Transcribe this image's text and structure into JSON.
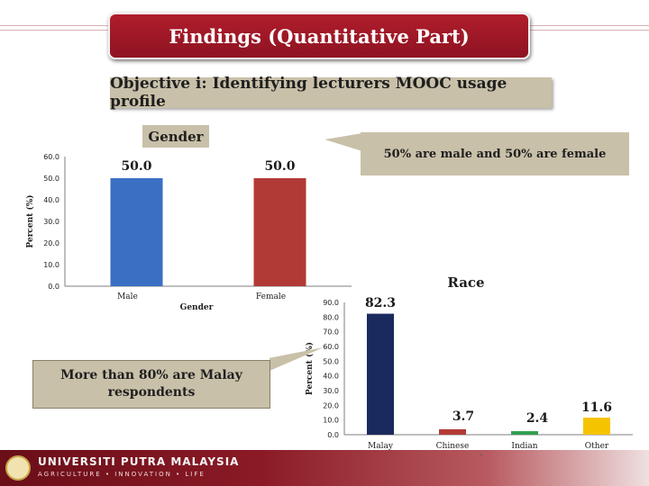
{
  "header": {
    "title": "Findings (Quantitative Part)",
    "objective": "Objective i: Identifying lecturers MOOC usage profile"
  },
  "gender_section": {
    "title": "Gender",
    "callout": "50% are male and 50% are female"
  },
  "race_section": {
    "title": "Race",
    "callout": "More than 80% are Malay respondents"
  },
  "footer": {
    "university": "UNIVERSITI PUTRA MALAYSIA",
    "tagline": "AGRICULTURE • INNOVATION • LIFE",
    "dash": "-"
  },
  "colors": {
    "title_bg": "#a3192a",
    "callout_bg": "#c9c0a9",
    "gender_bar": "#3a6fc4",
    "gender_bar_2": "#b23a36",
    "malay": "#1b2a5e",
    "chinese": "#b23a36",
    "indian": "#2f9e4f",
    "other": "#f5c400"
  },
  "chart_data": [
    {
      "type": "bar",
      "categories": [
        "Male",
        "Female"
      ],
      "values": [
        50.0,
        50.0
      ],
      "data_labels": [
        "50.0",
        "50.0"
      ],
      "xlabel": "Gender",
      "ylabel": "Percent (%)",
      "ylim": [
        0,
        60
      ],
      "y_ticks": [
        "0.0",
        "10.0",
        "20.0",
        "30.0",
        "40.0",
        "50.0",
        "60.0"
      ],
      "grid": false
    },
    {
      "type": "bar",
      "categories": [
        "Malay",
        "Chinese",
        "Indian",
        "Other"
      ],
      "values": [
        82.3,
        3.7,
        2.4,
        11.6
      ],
      "data_labels": [
        "82.3",
        "3.7",
        "2.4",
        "11.6"
      ],
      "xlabel": "",
      "ylabel": "Percent (%)",
      "ylim": [
        0,
        90
      ],
      "y_ticks": [
        "0.0",
        "10.0",
        "20.0",
        "30.0",
        "40.0",
        "50.0",
        "60.0",
        "70.0",
        "80.0",
        "90.0"
      ],
      "grid": false
    }
  ]
}
